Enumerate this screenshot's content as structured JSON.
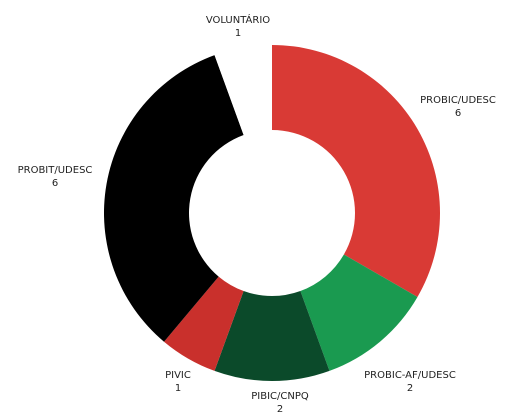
{
  "chart_data": {
    "type": "donut",
    "categories": [
      "PROBIC/UDESC",
      "PROBIC-AF/UDESC",
      "PIBIC/CNPQ",
      "PIVIC",
      "PROBIT/UDESC",
      "VOLUNTÁRIO"
    ],
    "values": [
      6,
      2,
      2,
      1,
      6,
      1
    ],
    "colors": [
      "#d93a35",
      "#1a9a50",
      "#0b4a2a",
      "#c9302c",
      "#000000",
      "#ffffff"
    ]
  }
}
